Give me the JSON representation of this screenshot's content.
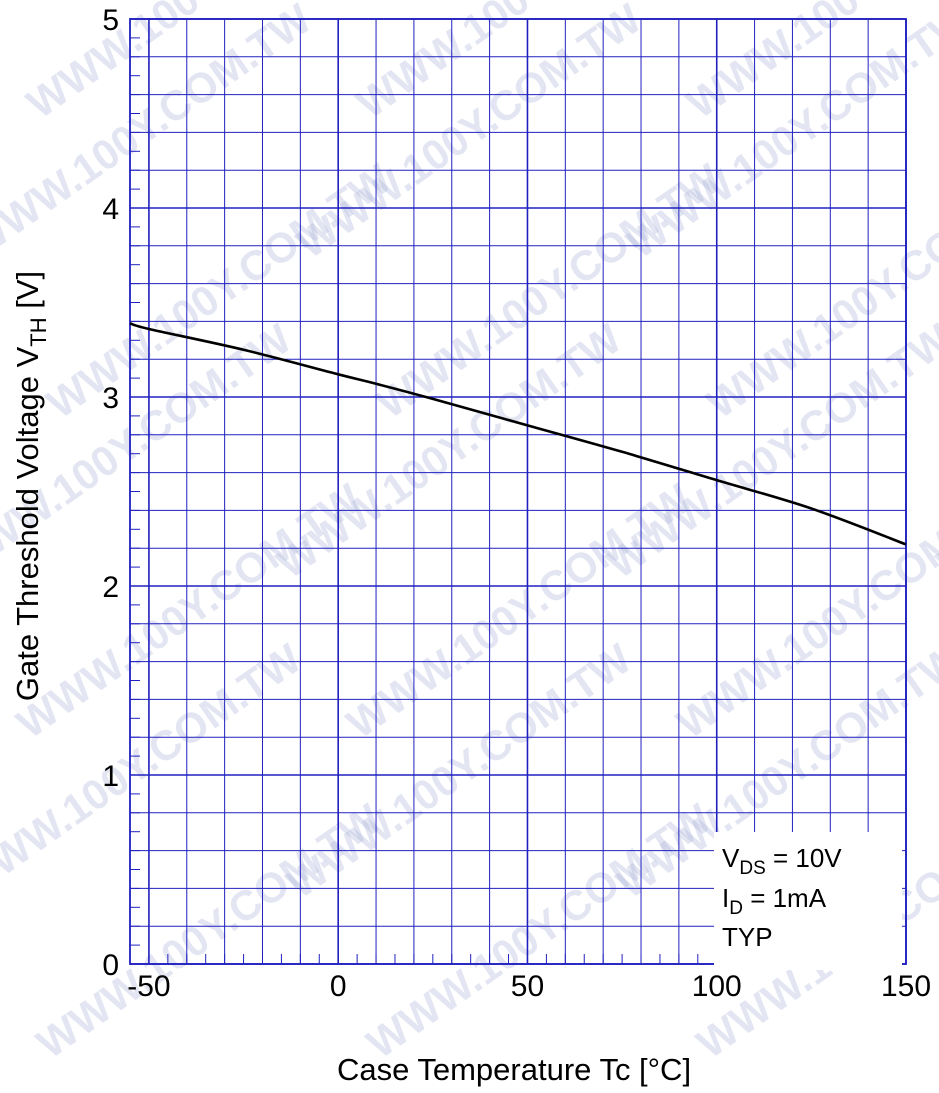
{
  "chart_data": {
    "type": "line",
    "xlabel": "Case Temperature  Tc  [°C]",
    "ylabel": {
      "main": "Gate Threshold Voltage  V",
      "sub": "TH",
      "unit": "  [V]"
    },
    "xlim": [
      -55,
      150
    ],
    "ylim": [
      0,
      5
    ],
    "x_ticks": [
      "-50",
      "0",
      "50",
      "100",
      "150"
    ],
    "y_ticks": [
      "0",
      "1",
      "2",
      "3",
      "4",
      "5"
    ],
    "grid": true,
    "series": [
      {
        "x": [
          -55,
          -50,
          -25,
          0,
          10,
          25,
          50,
          75,
          100,
          125,
          150
        ],
        "values": [
          3.39,
          3.36,
          3.25,
          3.12,
          3.07,
          2.99,
          2.85,
          2.71,
          2.56,
          2.41,
          2.22
        ]
      }
    ],
    "annotations": {
      "line1": {
        "main": "V",
        "sub": "DS",
        "rest": " = 10V"
      },
      "line2": {
        "main": "I",
        "sub": "D",
        "rest": " = 1mA"
      },
      "line3": "TYP"
    },
    "watermark": "WWW.100Y.COM.TW",
    "colors": {
      "grid": "#2020c0",
      "curve": "#000000"
    }
  }
}
